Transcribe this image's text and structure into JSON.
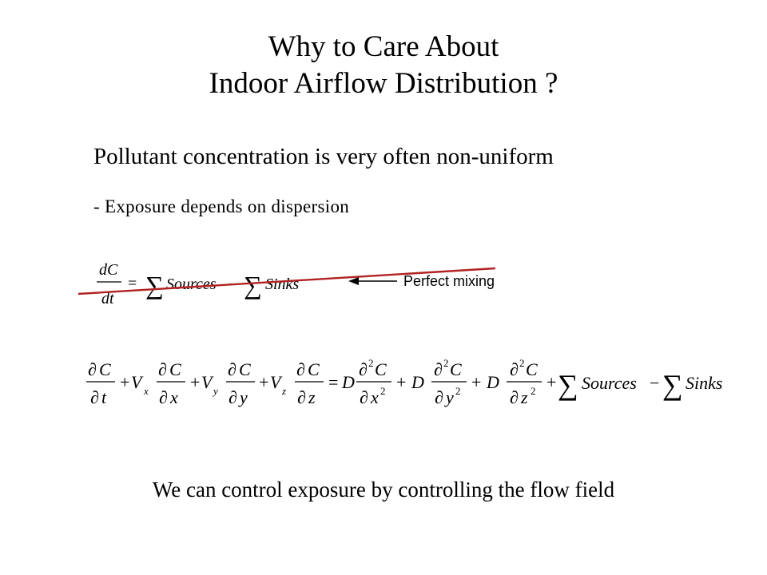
{
  "slide": {
    "title_line1": "Why to Care About",
    "title_line2": "Indoor Airflow Distribution ?",
    "heading": "Pollutant concentration is very often non-uniform",
    "bullet": "-  Exposure depends on dispersion",
    "annotation": "Perfect mixing",
    "conclusion": "We can control exposure by controlling the flow field"
  },
  "equations": {
    "perfect_mixing": {
      "lhs_num": "dC",
      "lhs_den": "dt",
      "eq": "=",
      "sum": "∑",
      "sources": "Sources",
      "minus": "−",
      "sinks": "Sinks"
    },
    "transport": {
      "partial": "∂",
      "C": "C",
      "t": "t",
      "V": "V",
      "x": "x",
      "y": "y",
      "z": "z",
      "plus": "+",
      "eq": "=",
      "D": "D",
      "sq": "2",
      "sum": "∑",
      "sources": "Sources",
      "minus": "−",
      "sinks": "Sinks"
    }
  },
  "colors": {
    "strike_line": "#b22222",
    "text": "#000000"
  }
}
